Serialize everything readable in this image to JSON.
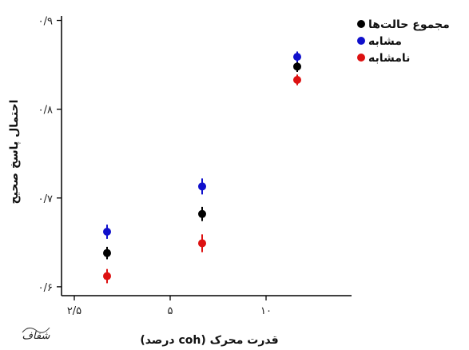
{
  "chart_data": {
    "type": "scatter",
    "xlabel": "قدرت محرک (coh درصد)",
    "ylabel": "احتمال پاسخ صحیح",
    "x_ticks": [
      {
        "value": 2.5,
        "label": "۲/۵"
      },
      {
        "value": 5,
        "label": "۵"
      },
      {
        "value": 10,
        "label": "۱۰"
      }
    ],
    "y_ticks": [
      {
        "value": 0.6,
        "label": "۰/۶"
      },
      {
        "value": 0.7,
        "label": "۰/۷"
      },
      {
        "value": 0.8,
        "label": "۰/۸"
      },
      {
        "value": 0.9,
        "label": "۰/۹"
      }
    ],
    "categories": [
      "۲/۵",
      "۵",
      "۱۰"
    ],
    "ylim": [
      0.59,
      0.905
    ],
    "grid": false,
    "legend": "top-right",
    "series": [
      {
        "name": "مجموع حالت‌ها",
        "color": "#000000",
        "values": [
          0.638,
          0.682,
          0.848
        ],
        "err": [
          0.007,
          0.008,
          0.006
        ]
      },
      {
        "name": "مشابه",
        "color": "#1010cc",
        "values": [
          0.662,
          0.713,
          0.859
        ],
        "err": [
          0.008,
          0.009,
          0.006
        ]
      },
      {
        "name": "نامشابه",
        "color": "#dd1111",
        "values": [
          0.612,
          0.649,
          0.833
        ],
        "err": [
          0.008,
          0.01,
          0.006
        ]
      }
    ]
  },
  "logo": {
    "text": "شفاف"
  }
}
